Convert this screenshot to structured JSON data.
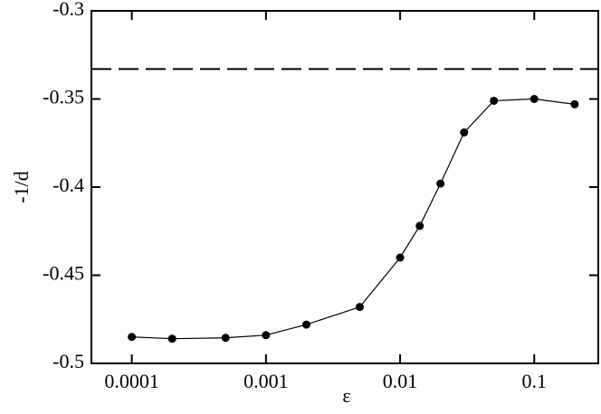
{
  "chart_data": {
    "type": "line",
    "x_label": "ε",
    "y_label": "-1/d",
    "xscale": "log",
    "x": [
      0.0001,
      0.0002,
      0.0005,
      0.001,
      0.002,
      0.005,
      0.01,
      0.014,
      0.02,
      0.03,
      0.05,
      0.1,
      0.2
    ],
    "series": [
      {
        "color": "#000000",
        "marker": "circle",
        "values": [
          -0.485,
          -0.486,
          -0.4855,
          -0.484,
          -0.478,
          -0.468,
          -0.44,
          -0.422,
          -0.398,
          -0.369,
          -0.351,
          -0.35,
          -0.353
        ]
      }
    ],
    "reference_line": {
      "value": -0.333,
      "style": "dashed",
      "color": "#000000"
    },
    "xlim": [
      5e-05,
      0.3
    ],
    "xticks": [
      0.0001,
      0.001,
      0.01,
      0.1
    ],
    "ylim": [
      -0.5,
      -0.3
    ],
    "yticks": [
      -0.5,
      -0.45,
      -0.4,
      -0.35,
      -0.3
    ]
  }
}
